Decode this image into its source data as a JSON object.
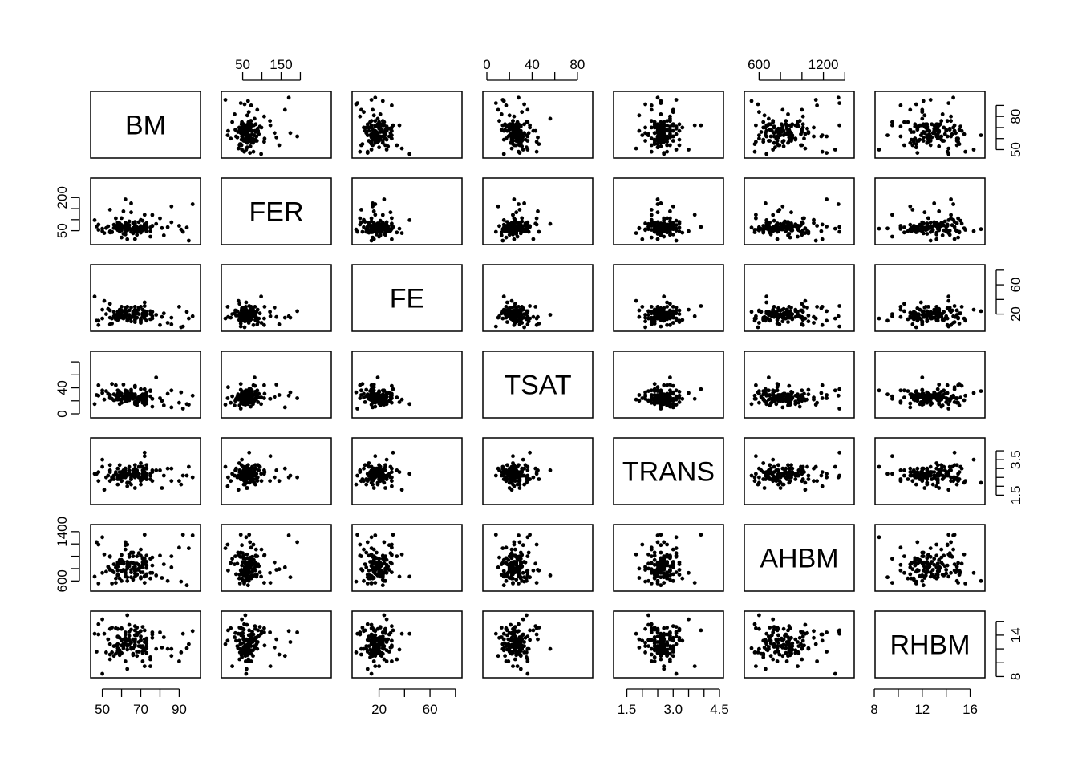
{
  "chart_data": {
    "type": "scatter",
    "subtype": "pairs-matrix",
    "variables": [
      "BM",
      "FER",
      "FE",
      "TSAT",
      "TRANS",
      "AHBM",
      "RHBM"
    ],
    "ranges": {
      "BM": [
        46,
        99
      ],
      "FER": [
        5,
        270
      ],
      "FE": [
        2,
        82
      ],
      "TSAT": [
        0,
        90
      ],
      "TRANS": [
        1.2,
        4.5
      ],
      "AHBM": [
        500,
        1450
      ],
      "RHBM": [
        8.4,
        16.9
      ]
    },
    "axes": [
      {
        "var": "BM",
        "side": "bottom",
        "ticks": [
          50,
          60,
          70,
          80,
          90
        ],
        "labels": [
          {
            "value": 50,
            "text": "50"
          },
          {
            "value": 70,
            "text": "70"
          },
          {
            "value": 90,
            "text": "90"
          }
        ]
      },
      {
        "var": "FER",
        "side": "top",
        "ticks": [
          50,
          100,
          150,
          200
        ],
        "labels": [
          {
            "value": 50,
            "text": "50"
          },
          {
            "value": 150,
            "text": "150"
          }
        ]
      },
      {
        "var": "FE",
        "side": "bottom",
        "ticks": [
          20,
          40,
          60,
          80
        ],
        "labels": [
          {
            "value": 20,
            "text": "20"
          },
          {
            "value": 60,
            "text": "60"
          }
        ]
      },
      {
        "var": "TSAT",
        "side": "top",
        "ticks": [
          0,
          20,
          40,
          60,
          80
        ],
        "labels": [
          {
            "value": 0,
            "text": "0"
          },
          {
            "value": 40,
            "text": "40"
          },
          {
            "value": 80,
            "text": "80"
          }
        ]
      },
      {
        "var": "TRANS",
        "side": "bottom",
        "ticks": [
          1.5,
          2.0,
          2.5,
          3.0,
          3.5,
          4.0,
          4.5
        ],
        "labels": [
          {
            "value": 1.5,
            "text": "1.5"
          },
          {
            "value": 3.0,
            "text": "3.0"
          },
          {
            "value": 4.5,
            "text": "4.5"
          }
        ]
      },
      {
        "var": "AHBM",
        "side": "top",
        "ticks": [
          600,
          800,
          1000,
          1200,
          1400
        ],
        "labels": [
          {
            "value": 600,
            "text": "600"
          },
          {
            "value": 1200,
            "text": "1200"
          }
        ]
      },
      {
        "var": "RHBM",
        "side": "bottom",
        "ticks": [
          8,
          10,
          12,
          14,
          16
        ],
        "labels": [
          {
            "value": 8,
            "text": "8"
          },
          {
            "value": 12,
            "text": "12"
          },
          {
            "value": 16,
            "text": "16"
          }
        ]
      },
      {
        "var": "BM",
        "side": "right",
        "ticks": [
          50,
          60,
          70,
          80,
          90
        ],
        "labels": [
          {
            "value": 50,
            "text": "50"
          },
          {
            "value": 80,
            "text": "80"
          }
        ]
      },
      {
        "var": "FER",
        "side": "left",
        "ticks": [
          50,
          100,
          150,
          200
        ],
        "labels": [
          {
            "value": 50,
            "text": "50"
          },
          {
            "value": 200,
            "text": "200"
          }
        ]
      },
      {
        "var": "FE",
        "side": "right",
        "ticks": [
          20,
          40,
          60,
          80
        ],
        "labels": [
          {
            "value": 20,
            "text": "20"
          },
          {
            "value": 60,
            "text": "60"
          }
        ]
      },
      {
        "var": "TSAT",
        "side": "left",
        "ticks": [
          0,
          20,
          40,
          60,
          80
        ],
        "labels": [
          {
            "value": 0,
            "text": "0"
          },
          {
            "value": 40,
            "text": "40"
          }
        ]
      },
      {
        "var": "TRANS",
        "side": "right",
        "ticks": [
          1.5,
          2.0,
          2.5,
          3.0,
          3.5,
          4.0
        ],
        "labels": [
          {
            "value": 1.5,
            "text": "1.5"
          },
          {
            "value": 3.5,
            "text": "3.5"
          }
        ]
      },
      {
        "var": "AHBM",
        "side": "left",
        "ticks": [
          600,
          800,
          1000,
          1200,
          1400
        ],
        "labels": [
          {
            "value": 600,
            "text": "600"
          },
          {
            "value": 1400,
            "text": "1400"
          }
        ]
      },
      {
        "var": "RHBM",
        "side": "right",
        "ticks": [
          8,
          10,
          12,
          14,
          16
        ],
        "labels": [
          {
            "value": 8,
            "text": "8"
          },
          {
            "value": 14,
            "text": "14"
          }
        ]
      }
    ],
    "observations": [
      [
        86,
        160,
        15,
        10,
        3.0,
        820,
        11.0
      ],
      [
        92,
        45,
        3,
        8,
        2.6,
        1350,
        14.2
      ],
      [
        62,
        33,
        18,
        23,
        3.0,
        710,
        13.2
      ],
      [
        50,
        48,
        26,
        32,
        3.5,
        730,
        16.3
      ],
      [
        63,
        57,
        24,
        35,
        2.2,
        600,
        16.9
      ],
      [
        97,
        170,
        17,
        28,
        2.5,
        1340,
        14.6
      ],
      [
        70,
        99,
        8,
        25,
        2.3,
        1110,
        14.6
      ],
      [
        60,
        19,
        15,
        17,
        2.3,
        890,
        15.0
      ],
      [
        46,
        98,
        44,
        15,
        2.7,
        670,
        14.2
      ],
      [
        78,
        81,
        19,
        56,
        2.9,
        690,
        12.0
      ],
      [
        86,
        88,
        6,
        36,
        2.3,
        1000,
        12.0
      ],
      [
        58,
        74,
        23,
        36,
        2.5,
        690,
        13.8
      ],
      [
        62,
        192,
        24,
        24,
        2.5,
        1230,
        14.4
      ],
      [
        75,
        48,
        13,
        35,
        2.4,
        640,
        10.8
      ],
      [
        91,
        55,
        2,
        33,
        2.1,
        590,
        11.5
      ],
      [
        48,
        78,
        5,
        44,
        2.8,
        1190,
        14.1
      ],
      [
        80,
        106,
        5,
        24,
        2.9,
        1010,
        14.4
      ],
      [
        95,
        5,
        14,
        14,
        3.1,
        1130,
        12.7
      ],
      [
        72,
        122,
        17,
        23,
        3.7,
        570,
        9.5
      ],
      [
        55,
        45,
        7,
        46,
        2.4,
        770,
        15.1
      ],
      [
        94,
        64,
        23,
        15,
        2.6,
        530,
        12.1
      ],
      [
        51,
        39,
        38,
        22,
        1.8,
        1030,
        14.2
      ],
      [
        82,
        29,
        21,
        13,
        2.6,
        870,
        13.7
      ],
      [
        50,
        59,
        14,
        36,
        3.1,
        1310,
        8.4
      ],
      [
        90,
        72,
        30,
        17,
        2.3,
        1140,
        10.2
      ],
      [
        63,
        11,
        30,
        24,
        2.0,
        1190,
        13.2
      ],
      [
        60,
        107,
        30,
        31,
        2.8,
        1020,
        12.5
      ],
      [
        72,
        67,
        31,
        38,
        3.9,
        1350,
        14.7
      ],
      [
        60,
        51,
        25,
        17,
        2.5,
        600,
        14.9
      ],
      [
        55,
        43,
        14,
        23,
        2.5,
        560,
        11.5
      ],
      [
        63,
        60,
        11,
        30,
        2.7,
        660,
        9.1
      ],
      [
        68,
        42,
        21,
        13,
        2.8,
        700,
        15.1
      ],
      [
        67,
        12,
        16,
        41,
        2.5,
        770,
        14.7
      ],
      [
        65,
        174,
        15,
        33,
        2.6,
        660,
        13.0
      ],
      [
        47,
        69,
        11,
        29,
        2.7,
        1230,
        11.6
      ],
      [
        84,
        66,
        8,
        31,
        3.0,
        600,
        12.0
      ],
      [
        75,
        23,
        20,
        27,
        2.7,
        960,
        9.5
      ],
      [
        71,
        95,
        21,
        25,
        3.1,
        740,
        15.2
      ],
      [
        61,
        138,
        16,
        45,
        2.9,
        780,
        13.4
      ],
      [
        54,
        145,
        6,
        29,
        2.3,
        790,
        11.2
      ],
      [
        57,
        106,
        14,
        44,
        2.7,
        570,
        15.0
      ],
      [
        62,
        48,
        28,
        32,
        2.6,
        1180,
        14.1
      ],
      [
        67,
        60,
        25,
        29,
        1.9,
        800,
        13.4
      ],
      [
        65,
        133,
        29,
        26,
        2.5,
        900,
        12.2
      ],
      [
        54,
        42,
        34,
        25,
        2.9,
        1000,
        10.5
      ],
      [
        57,
        72,
        13,
        22,
        2.8,
        640,
        11.3
      ],
      [
        72,
        59,
        36,
        18,
        2.8,
        670,
        11.9
      ],
      [
        67,
        46,
        17,
        18,
        2.7,
        720,
        14.0
      ],
      [
        65,
        45,
        10,
        37,
        2.4,
        1060,
        12.0
      ],
      [
        75,
        65,
        24,
        36,
        2.6,
        730,
        10.5
      ],
      [
        48,
        54,
        11,
        28,
        2.3,
        560,
        15.6
      ],
      [
        68,
        31,
        25,
        20,
        2.9,
        1000,
        14.3
      ],
      [
        70,
        56,
        10,
        27,
        2.1,
        820,
        12.4
      ],
      [
        73,
        47,
        20,
        16,
        2.4,
        710,
        12.8
      ],
      [
        62,
        65,
        16,
        36,
        2.9,
        770,
        10.2
      ],
      [
        72,
        57,
        24,
        14,
        3.0,
        890,
        12.0
      ],
      [
        73,
        53,
        19,
        22,
        2.7,
        690,
        12.3
      ],
      [
        62,
        85,
        16,
        22,
        3.0,
        1110,
        13.6
      ],
      [
        76,
        71,
        17,
        11,
        2.9,
        980,
        13.6
      ],
      [
        64,
        61,
        14,
        21,
        2.2,
        1030,
        15.5
      ],
      [
        81,
        62,
        16,
        20,
        1.9,
        650,
        12.2
      ],
      [
        70,
        71,
        14,
        38,
        2.4,
        660,
        13.3
      ],
      [
        67,
        90,
        9,
        18,
        3.2,
        870,
        14.7
      ],
      [
        76,
        72,
        14,
        23,
        2.8,
        850,
        14.1
      ],
      [
        59,
        47,
        15,
        30,
        2.8,
        640,
        11.1
      ],
      [
        67,
        82,
        30,
        43,
        3.0,
        880,
        15.3
      ],
      [
        67,
        52,
        22,
        15,
        2.9,
        760,
        13.4
      ],
      [
        58,
        87,
        12,
        29,
        2.4,
        700,
        13.7
      ],
      [
        76,
        121,
        23,
        23,
        2.3,
        730,
        14.4
      ],
      [
        69,
        50,
        29,
        22,
        3.1,
        1050,
        14.3
      ],
      [
        67,
        76,
        21,
        28,
        2.8,
        670,
        13.0
      ],
      [
        65,
        53,
        16,
        24,
        2.4,
        740,
        14.8
      ],
      [
        70,
        41,
        12,
        23,
        3.3,
        640,
        13.2
      ],
      [
        63,
        80,
        19,
        20,
        2.2,
        800,
        12.4
      ],
      [
        53,
        70,
        27,
        31,
        2.6,
        830,
        13.4
      ],
      [
        73,
        84,
        23,
        23,
        2.4,
        1010,
        13.2
      ],
      [
        62,
        86,
        23,
        29,
        2.7,
        670,
        12.7
      ],
      [
        59,
        77,
        26,
        15,
        2.4,
        940,
        11.8
      ],
      [
        59,
        83,
        20,
        34,
        3.2,
        900,
        13.6
      ],
      [
        66,
        58,
        23,
        26,
        2.9,
        620,
        11.3
      ],
      [
        71,
        64,
        17,
        17,
        2.9,
        970,
        12.4
      ],
      [
        64,
        92,
        14,
        31,
        2.9,
        840,
        13.9
      ],
      [
        68,
        61,
        15,
        23,
        2.8,
        880,
        11.6
      ],
      [
        69,
        58,
        28,
        20,
        2.7,
        780,
        11.6
      ],
      [
        73,
        64,
        20,
        20,
        3.0,
        850,
        12.1
      ],
      [
        73,
        72,
        20,
        33,
        3.0,
        910,
        12.4
      ],
      [
        61,
        36,
        24,
        26,
        2.5,
        880,
        12.4
      ],
      [
        73,
        64,
        11,
        28,
        3.2,
        700,
        13.3
      ],
      [
        70,
        52,
        12,
        25,
        3.1,
        1010,
        13.8
      ],
      [
        56,
        62,
        23,
        21,
        2.4,
        740,
        12.4
      ],
      [
        66,
        38,
        18,
        30,
        2.6,
        1060,
        12.1
      ],
      [
        58,
        83,
        19,
        23,
        2.1,
        830,
        14.9
      ],
      [
        52,
        62,
        20,
        35,
        2.5,
        750,
        11.5
      ],
      [
        58,
        53,
        20,
        26,
        2.6,
        770,
        11.7
      ],
      [
        63,
        51,
        13,
        25,
        2.7,
        910,
        11.9
      ],
      [
        65,
        53,
        15,
        29,
        2.1,
        780,
        12.9
      ],
      [
        62,
        69,
        21,
        19,
        2.8,
        740,
        12.7
      ],
      [
        64,
        75,
        25,
        27,
        3.1,
        990,
        14.5
      ],
      [
        58,
        64,
        19,
        22,
        3.0,
        880,
        11.6
      ],
      [
        71,
        52,
        18,
        22,
        2.6,
        970,
        11.4
      ],
      [
        69,
        89,
        26,
        26,
        2.5,
        860,
        13.0
      ],
      [
        54,
        47,
        25,
        24,
        3.2,
        780,
        14.9
      ],
      [
        58,
        55,
        19,
        31,
        2.6,
        900,
        12.1
      ],
      [
        73,
        48,
        22,
        21,
        2.5,
        850,
        11.4
      ],
      [
        70,
        58,
        30,
        28,
        2.5,
        740,
        12.3
      ],
      [
        72,
        72,
        14,
        29,
        2.5,
        680,
        11.8
      ],
      [
        60,
        70,
        16,
        28,
        2.7,
        940,
        11.4
      ],
      [
        66,
        84,
        16,
        29,
        2.7,
        1000,
        12.1
      ],
      [
        57,
        61,
        19,
        28,
        2.7,
        820,
        12.5
      ],
      [
        60,
        76,
        21,
        22,
        2.3,
        760,
        13.3
      ],
      [
        72,
        79,
        24,
        19,
        2.6,
        940,
        13.4
      ],
      [
        54,
        44,
        15,
        26,
        2.8,
        990,
        12.7
      ],
      [
        71,
        58,
        26,
        19,
        2.4,
        860,
        10.2
      ],
      [
        73,
        71,
        19,
        26,
        2.7,
        810,
        13.5
      ],
      [
        68,
        57,
        22,
        16,
        2.8,
        710,
        11.0
      ],
      [
        67,
        83,
        12,
        24,
        2.6,
        770,
        12.4
      ],
      [
        71,
        51,
        17,
        30,
        2.6,
        900,
        11.7
      ],
      [
        67,
        70,
        26,
        30,
        2.6,
        820,
        13.2
      ],
      [
        72,
        73,
        23,
        30,
        2.6,
        960,
        13.0
      ],
      [
        60,
        60,
        19,
        22,
        2.8,
        900,
        11.4
      ],
      [
        63,
        68,
        19,
        21,
        2.2,
        880,
        13.3
      ],
      [
        68,
        66,
        15,
        24,
        2.6,
        780,
        14.0
      ],
      [
        56,
        77,
        17,
        30,
        2.6,
        870,
        11.0
      ],
      [
        64,
        58,
        17,
        24,
        2.7,
        880,
        13.3
      ],
      [
        71,
        57,
        20,
        27,
        2.6,
        960,
        11.6
      ],
      [
        66,
        56,
        17,
        23,
        2.7,
        810,
        13.4
      ],
      [
        69,
        62,
        20,
        24,
        2.5,
        800,
        12.4
      ],
      [
        61,
        66,
        14,
        24,
        2.8,
        910,
        12.8
      ],
      [
        66,
        62,
        21,
        26,
        2.6,
        890,
        11.1
      ],
      [
        67,
        62,
        21,
        28,
        2.7,
        830,
        12.6
      ],
      [
        58,
        66,
        17,
        26,
        2.6,
        880,
        12.7
      ],
      [
        59,
        67,
        18,
        22,
        2.6,
        900,
        11.3
      ],
      [
        71,
        58,
        19,
        20,
        2.7,
        820,
        12.2
      ],
      [
        61,
        62,
        17,
        25,
        2.6,
        770,
        12.1
      ],
      [
        63,
        65,
        18,
        28,
        2.6,
        830,
        12.6
      ],
      [
        64,
        62,
        19,
        22,
        2.7,
        860,
        12.6
      ]
    ]
  }
}
